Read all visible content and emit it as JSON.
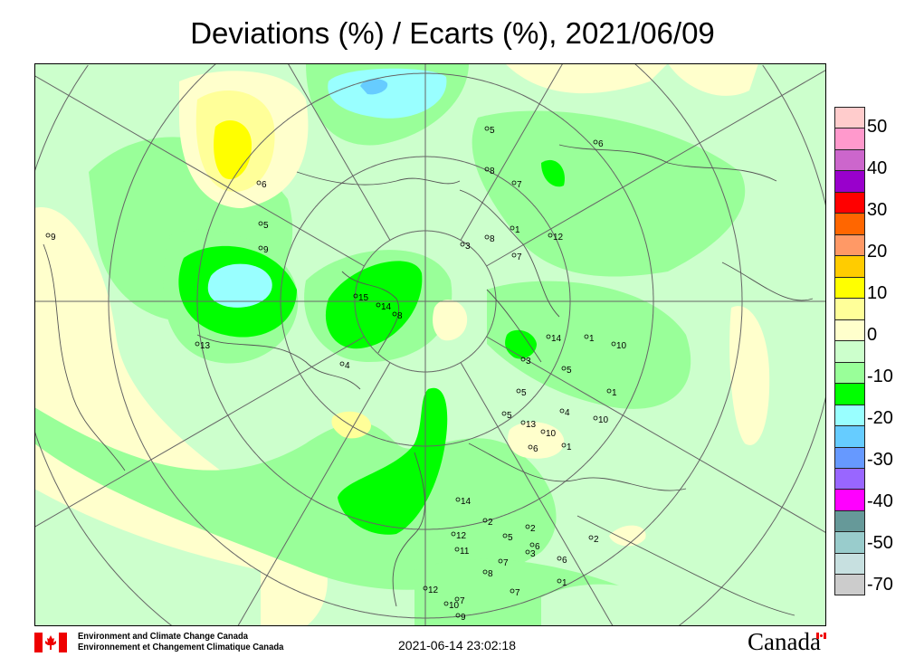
{
  "title": "Deviations (%) / Ecarts (%), 2021/06/09",
  "legend": {
    "colors": [
      "#ffcccc",
      "#ff99cc",
      "#cc66cc",
      "#9900cc",
      "#ff0000",
      "#ff6600",
      "#ff9966",
      "#ffcc00",
      "#ffff00",
      "#ffff99",
      "#ffffcc",
      "#ccffcc",
      "#99ff99",
      "#00ff00",
      "#99ffff",
      "#66ccff",
      "#6699ff",
      "#9966ff",
      "#ff00ff",
      "#669999",
      "#99cccc",
      "#c7e0e0",
      "#cccccc"
    ],
    "labels": [
      "50",
      "40",
      "30",
      "20",
      "10",
      "0",
      "-10",
      "-20",
      "-30",
      "-40",
      "-50",
      "-70"
    ]
  },
  "map": {
    "projection": "north polar stereographic",
    "background_color": "#ccffcc",
    "stations": [
      "9",
      "6",
      "5",
      "9",
      "13",
      "4",
      "15",
      "14",
      "8",
      "3",
      "8",
      "7",
      "12",
      "6",
      "5",
      "8",
      "7",
      "1",
      "5",
      "3",
      "14",
      "1",
      "10",
      "5",
      "1",
      "4",
      "13",
      "10",
      "1",
      "10",
      "5",
      "14",
      "12",
      "11",
      "2",
      "5",
      "2",
      "6",
      "3",
      "6",
      "7",
      "8",
      "1",
      "7",
      "12",
      "10",
      "7",
      "9",
      "2",
      "6"
    ]
  },
  "footer": {
    "org_en": "Environment and Climate Change Canada",
    "org_fr": "Environnement et Changement Climatique Canada",
    "timestamp": "2021-06-14 23:02:18",
    "wordmark": "Canada"
  }
}
